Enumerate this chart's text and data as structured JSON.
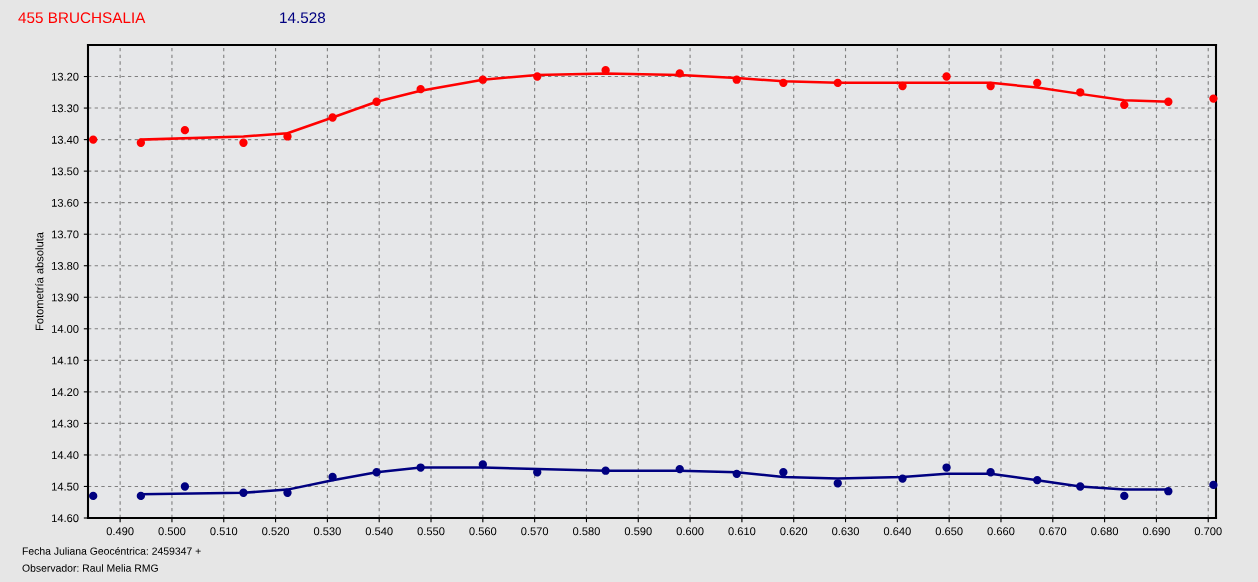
{
  "chart_data": {
    "type": "scatter",
    "title": "455 BRUCHSALIA",
    "subtitle": "14.528",
    "ylabel": "Fotometría absoluta",
    "annotations": [
      "Fecha Juliana Geocéntrica: 2459347 +",
      "Observador: Raul Melia RMG"
    ],
    "marker": "circle",
    "grid": true,
    "legend": false,
    "xlim": [
      0.4838,
      0.7015
    ],
    "xticks": [
      {
        "value": 0.49,
        "label": "0.490"
      },
      {
        "value": 0.5,
        "label": "0.500"
      },
      {
        "value": 0.51,
        "label": "0.510"
      },
      {
        "value": 0.52,
        "label": "0.520"
      },
      {
        "value": 0.53,
        "label": "0.530"
      },
      {
        "value": 0.54,
        "label": "0.540"
      },
      {
        "value": 0.55,
        "label": "0.550"
      },
      {
        "value": 0.56,
        "label": "0.560"
      },
      {
        "value": 0.57,
        "label": "0.570"
      },
      {
        "value": 0.58,
        "label": "0.580"
      },
      {
        "value": 0.59,
        "label": "0.590"
      },
      {
        "value": 0.6,
        "label": "0.600"
      },
      {
        "value": 0.61,
        "label": "0.610"
      },
      {
        "value": 0.62,
        "label": "0.620"
      },
      {
        "value": 0.63,
        "label": "0.630"
      },
      {
        "value": 0.64,
        "label": "0.640"
      },
      {
        "value": 0.65,
        "label": "0.650"
      },
      {
        "value": 0.66,
        "label": "0.660"
      },
      {
        "value": 0.67,
        "label": "0.670"
      },
      {
        "value": 0.68,
        "label": "0.680"
      },
      {
        "value": 0.69,
        "label": "0.690"
      },
      {
        "value": 0.7,
        "label": "0.700"
      }
    ],
    "ylim": [
      14.6,
      13.1
    ],
    "yticks": [
      {
        "value": 13.2,
        "label": "13.20"
      },
      {
        "value": 13.3,
        "label": "13.30"
      },
      {
        "value": 13.4,
        "label": "13.40"
      },
      {
        "value": 13.5,
        "label": "13.50"
      },
      {
        "value": 13.6,
        "label": "13.60"
      },
      {
        "value": 13.7,
        "label": "13.70"
      },
      {
        "value": 13.8,
        "label": "13.80"
      },
      {
        "value": 13.9,
        "label": "13.90"
      },
      {
        "value": 14.0,
        "label": "14.00"
      },
      {
        "value": 14.1,
        "label": "14.10"
      },
      {
        "value": 14.2,
        "label": "14.20"
      },
      {
        "value": 14.3,
        "label": "14.30"
      },
      {
        "value": 14.4,
        "label": "14.40"
      },
      {
        "value": 14.5,
        "label": "14.50"
      },
      {
        "value": 14.6,
        "label": "14.60"
      }
    ],
    "series": [
      {
        "color": "#ff0000",
        "x": [
          0.4848,
          0.494,
          0.5025,
          0.5138,
          0.5223,
          0.531,
          0.5395,
          0.548,
          0.56,
          0.5705,
          0.5837,
          0.598,
          0.609,
          0.618,
          0.6285,
          0.641,
          0.6495,
          0.658,
          0.667,
          0.6753,
          0.6838,
          0.6923,
          0.701
        ],
        "values": [
          13.4,
          13.41,
          13.37,
          13.41,
          13.39,
          13.33,
          13.28,
          13.24,
          13.21,
          13.2,
          13.18,
          13.19,
          13.21,
          13.22,
          13.22,
          13.23,
          13.2,
          13.23,
          13.22,
          13.25,
          13.29,
          13.28,
          13.27
        ]
      },
      {
        "type": "line",
        "color": "#ff0000",
        "marker": "none",
        "x": [
          0.494,
          0.5138,
          0.5223,
          0.531,
          0.5395,
          0.548,
          0.56,
          0.5705,
          0.5837,
          0.598,
          0.609,
          0.618,
          0.6285,
          0.641,
          0.658,
          0.667,
          0.6753,
          0.6838,
          0.6923
        ],
        "values": [
          13.4,
          13.39,
          13.38,
          13.33,
          13.28,
          13.245,
          13.21,
          13.195,
          13.19,
          13.195,
          13.205,
          13.215,
          13.22,
          13.22,
          13.22,
          13.235,
          13.255,
          13.275,
          13.28
        ]
      },
      {
        "color": "#000080",
        "x": [
          0.4848,
          0.494,
          0.5025,
          0.5138,
          0.5223,
          0.531,
          0.5395,
          0.548,
          0.56,
          0.5705,
          0.5837,
          0.598,
          0.609,
          0.618,
          0.6285,
          0.641,
          0.6495,
          0.658,
          0.667,
          0.6753,
          0.6838,
          0.6923,
          0.701
        ],
        "values": [
          14.53,
          14.53,
          14.5,
          14.52,
          14.52,
          14.47,
          14.455,
          14.44,
          14.43,
          14.455,
          14.45,
          14.445,
          14.46,
          14.455,
          14.49,
          14.475,
          14.44,
          14.455,
          14.48,
          14.5,
          14.53,
          14.515,
          14.495
        ]
      },
      {
        "type": "line",
        "color": "#000080",
        "marker": "none",
        "x": [
          0.494,
          0.5138,
          0.5223,
          0.531,
          0.5395,
          0.548,
          0.56,
          0.5705,
          0.5837,
          0.598,
          0.609,
          0.618,
          0.6285,
          0.641,
          0.6495,
          0.658,
          0.667,
          0.6753,
          0.6838,
          0.6923
        ],
        "values": [
          14.525,
          14.52,
          14.51,
          14.48,
          14.455,
          14.44,
          14.44,
          14.445,
          14.45,
          14.45,
          14.455,
          14.47,
          14.475,
          14.47,
          14.46,
          14.46,
          14.48,
          14.5,
          14.51,
          14.51
        ]
      }
    ]
  }
}
